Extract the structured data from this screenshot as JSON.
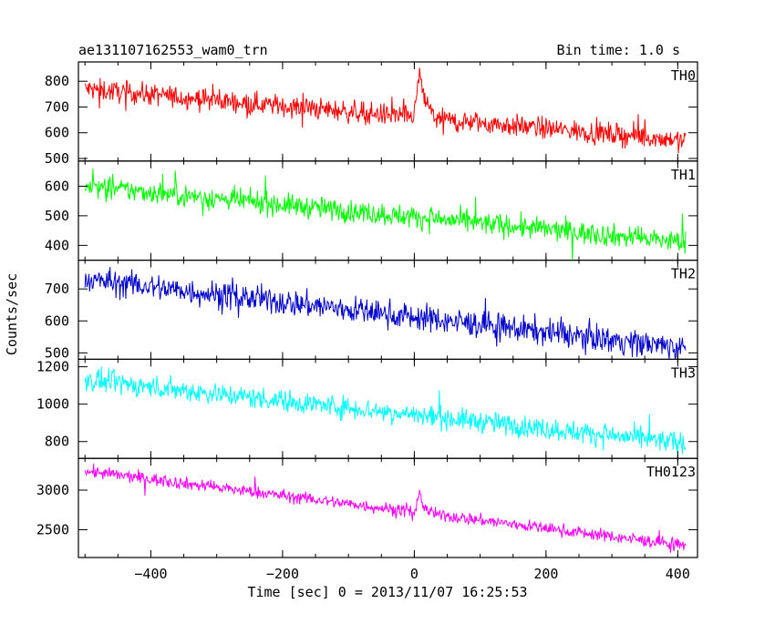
{
  "chart_data": {
    "type": "line",
    "title_left": "ae131107162553_wam0_trn",
    "title_right": "Bin time: 1.0 s",
    "xlabel": "Time [sec] 0 = 2013/11/07 16:25:53",
    "ylabel": "Counts/sec",
    "xlim": [
      -510,
      430
    ],
    "x_ticks": [
      -400,
      -200,
      0,
      200,
      400
    ],
    "panels": [
      {
        "name": "TH0",
        "color": "#ff0000",
        "ylim": [
          490,
          875
        ],
        "y_ticks": [
          500,
          600,
          700,
          800
        ],
        "baseline_start": 770,
        "baseline_end": 570,
        "noise": 30,
        "burst_height": 110,
        "values_at": {
          "-500": 775,
          "-300": 740,
          "-100": 700,
          "0": 680,
          "10": 810,
          "100": 625,
          "200": 600,
          "300": 585,
          "410": 565
        }
      },
      {
        "name": "TH1",
        "color": "#00ff00",
        "ylim": [
          350,
          685
        ],
        "y_ticks": [
          400,
          500,
          600
        ],
        "baseline_start": 600,
        "baseline_end": 410,
        "noise": 27,
        "burst_height": 0,
        "values_at": {
          "-500": 600,
          "-300": 565,
          "-100": 520,
          "0": 490,
          "100": 465,
          "200": 450,
          "300": 425,
          "410": 410
        }
      },
      {
        "name": "TH2",
        "color": "#0000cc",
        "ylim": [
          480,
          790
        ],
        "y_ticks": [
          500,
          600,
          700
        ],
        "baseline_start": 730,
        "baseline_end": 515,
        "noise": 30,
        "burst_height": 0,
        "values_at": {
          "-500": 730,
          "-300": 700,
          "-100": 640,
          "0": 610,
          "100": 575,
          "200": 555,
          "300": 535,
          "410": 515
        }
      },
      {
        "name": "TH3",
        "color": "#00ffff",
        "ylim": [
          710,
          1240
        ],
        "y_ticks": [
          800,
          1000,
          1200
        ],
        "baseline_start": 1130,
        "baseline_end": 790,
        "noise": 42,
        "burst_height": 0,
        "values_at": {
          "-500": 1130,
          "-300": 1080,
          "-100": 1000,
          "0": 950,
          "100": 900,
          "200": 870,
          "300": 830,
          "410": 790
        }
      },
      {
        "name": "TH0123",
        "color": "#ff00ff",
        "ylim": [
          2150,
          3400
        ],
        "y_ticks": [
          2500,
          3000
        ],
        "baseline_start": 3240,
        "baseline_end": 2300,
        "noise": 55,
        "burst_height": 180,
        "values_at": {
          "-500": 3240,
          "-300": 3100,
          "-100": 2870,
          "0": 2740,
          "10": 2900,
          "100": 2580,
          "200": 2480,
          "300": 2380,
          "410": 2300
        }
      }
    ]
  }
}
